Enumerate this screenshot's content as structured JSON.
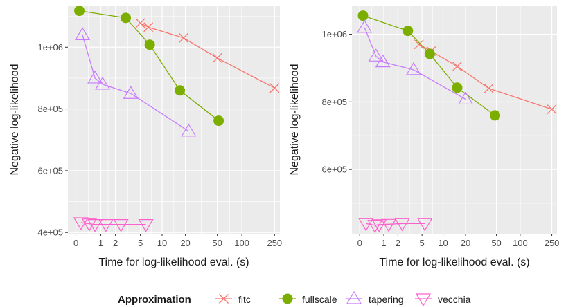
{
  "chart_data": [
    {
      "type": "line",
      "xlabel": "Time for log-likelihood eval. (s)",
      "ylabel": "Negative log-likelihood",
      "x_scale": "log1p",
      "xlim": [
        -0.2,
        290
      ],
      "ylim": [
        396000,
        1135000
      ],
      "x_ticks": [
        0,
        1,
        2,
        5,
        10,
        20,
        50,
        100,
        250
      ],
      "x_tick_labels": [
        "0",
        "1",
        "2",
        "5",
        "10",
        "20",
        "50",
        "100",
        "250"
      ],
      "y_ticks": [
        400000,
        600000,
        800000,
        1000000
      ],
      "y_tick_labels": [
        "4e+05",
        "6e+05",
        "8e+05",
        "1e+06"
      ],
      "grid": true,
      "series": [
        {
          "name": "fitc",
          "color": "#F8766D",
          "marker": "x",
          "points": [
            [
              5,
              1078000
            ],
            [
              6.5,
              1065000
            ],
            [
              19,
              1030000
            ],
            [
              50,
              965000
            ],
            [
              250,
              868000
            ]
          ]
        },
        {
          "name": "fullscale",
          "color": "#7CAE00",
          "marker": "circle",
          "points": [
            [
              0.1,
              1118000
            ],
            [
              3,
              1095000
            ],
            [
              6.8,
              1008000
            ],
            [
              17,
              860000
            ],
            [
              52,
              762000
            ]
          ]
        },
        {
          "name": "tapering",
          "color": "#C77CFF",
          "marker": "triangle-up",
          "points": [
            [
              0.2,
              1040000
            ],
            [
              0.7,
              900000
            ],
            [
              1.1,
              880000
            ],
            [
              3.6,
              850000
            ],
            [
              22,
              728000
            ]
          ]
        },
        {
          "name": "vecchia",
          "color": "#FF61CC",
          "marker": "triangle-down",
          "points": [
            [
              0.15,
              432000
            ],
            [
              0.45,
              428000
            ],
            [
              0.7,
              426000
            ],
            [
              1.3,
              426000
            ],
            [
              2.5,
              426000
            ],
            [
              6,
              426000
            ]
          ]
        }
      ]
    },
    {
      "type": "line",
      "xlabel": "Time for log-likelihood eval. (s)",
      "ylabel": "Negative log-likelihood",
      "x_scale": "log1p",
      "xlim": [
        -0.2,
        290
      ],
      "ylim": [
        410000,
        1085000
      ],
      "x_ticks": [
        0,
        1,
        2,
        5,
        10,
        20,
        50,
        100,
        250
      ],
      "x_tick_labels": [
        "0",
        "1",
        "2",
        "5",
        "10",
        "20",
        "50",
        "100",
        "250"
      ],
      "y_ticks": [
        600000,
        800000,
        1000000
      ],
      "y_tick_labels": [
        "6e+05",
        "8e+05",
        "1e+06"
      ],
      "grid": true,
      "series": [
        {
          "name": "fitc",
          "color": "#F8766D",
          "marker": "x",
          "points": [
            [
              4.5,
              970000
            ],
            [
              6.8,
              950000
            ],
            [
              15.5,
              905000
            ],
            [
              40,
              840000
            ],
            [
              250,
              778000
            ]
          ]
        },
        {
          "name": "fullscale",
          "color": "#7CAE00",
          "marker": "circle",
          "points": [
            [
              0.1,
              1055000
            ],
            [
              3,
              1010000
            ],
            [
              6.5,
              942000
            ],
            [
              15.5,
              842000
            ],
            [
              48,
              760000
            ]
          ]
        },
        {
          "name": "tapering",
          "color": "#C77CFF",
          "marker": "triangle-up",
          "points": [
            [
              0.15,
              1020000
            ],
            [
              0.6,
              935000
            ],
            [
              0.95,
              918000
            ],
            [
              3.7,
              895000
            ],
            [
              20,
              808000
            ]
          ]
        },
        {
          "name": "vecchia",
          "color": "#FF61CC",
          "marker": "triangle-down",
          "points": [
            [
              0.2,
              440000
            ],
            [
              0.55,
              435000
            ],
            [
              0.75,
              437000
            ],
            [
              1.3,
              438000
            ],
            [
              2.4,
              440000
            ],
            [
              5.5,
              440000
            ]
          ]
        }
      ]
    }
  ],
  "legend": {
    "title": "Approximation",
    "position": "bottom",
    "items": [
      {
        "label": "fitc",
        "color": "#F8766D",
        "marker": "x"
      },
      {
        "label": "fullscale",
        "color": "#7CAE00",
        "marker": "circle"
      },
      {
        "label": "tapering",
        "color": "#C77CFF",
        "marker": "triangle-up"
      },
      {
        "label": "vecchia",
        "color": "#FF61CC",
        "marker": "triangle-down"
      }
    ]
  }
}
